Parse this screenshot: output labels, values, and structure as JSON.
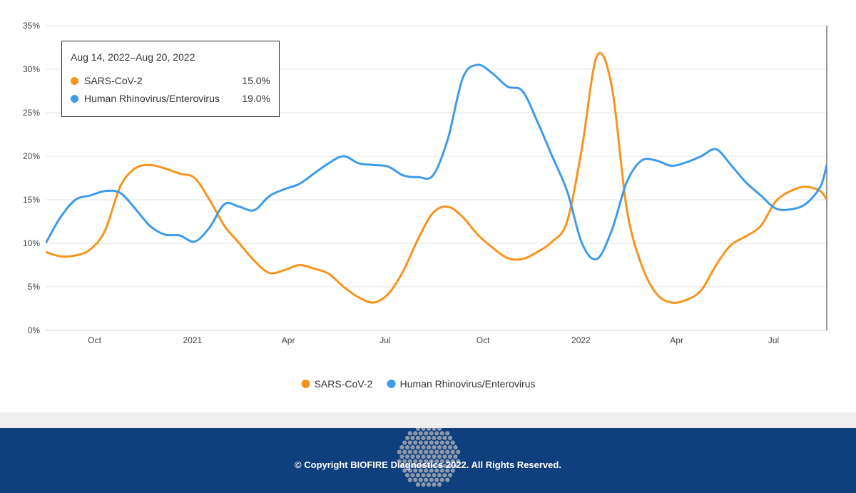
{
  "chart_data": {
    "type": "line",
    "y_ticks": [
      "0%",
      "5%",
      "10%",
      "15%",
      "20%",
      "25%",
      "30%",
      "35%"
    ],
    "ylim": [
      0,
      35
    ],
    "y_unit": "%",
    "x_range": [
      "2020-08-16",
      "2022-08-20"
    ],
    "x_ticks": [
      {
        "label": "Oct",
        "date": "2020-10-01"
      },
      {
        "label": "2021",
        "date": "2021-01-01"
      },
      {
        "label": "Apr",
        "date": "2021-04-01"
      },
      {
        "label": "Jul",
        "date": "2021-07-01"
      },
      {
        "label": "Oct",
        "date": "2021-10-01"
      },
      {
        "label": "2022",
        "date": "2022-01-01"
      },
      {
        "label": "Apr",
        "date": "2022-04-01"
      },
      {
        "label": "Jul",
        "date": "2022-07-01"
      }
    ],
    "grid": true,
    "legend": "bottom-center",
    "series": [
      {
        "name": "SARS-CoV-2",
        "color": "#f7941d",
        "points": [
          [
            "2020-08-16",
            9.0
          ],
          [
            "2020-08-30",
            8.5
          ],
          [
            "2020-09-13",
            8.6
          ],
          [
            "2020-09-27",
            9.3
          ],
          [
            "2020-10-11",
            11.5
          ],
          [
            "2020-10-25",
            16.5
          ],
          [
            "2020-11-08",
            18.6
          ],
          [
            "2020-11-22",
            19.0
          ],
          [
            "2020-12-06",
            18.6
          ],
          [
            "2020-12-20",
            18.0
          ],
          [
            "2021-01-03",
            17.5
          ],
          [
            "2021-01-17",
            15.0
          ],
          [
            "2021-01-31",
            12.0
          ],
          [
            "2021-02-14",
            10.0
          ],
          [
            "2021-02-28",
            8.0
          ],
          [
            "2021-03-14",
            6.6
          ],
          [
            "2021-03-28",
            6.9
          ],
          [
            "2021-04-11",
            7.5
          ],
          [
            "2021-04-25",
            7.1
          ],
          [
            "2021-05-09",
            6.5
          ],
          [
            "2021-05-23",
            5.0
          ],
          [
            "2021-06-06",
            3.8
          ],
          [
            "2021-06-20",
            3.2
          ],
          [
            "2021-07-04",
            4.2
          ],
          [
            "2021-07-18",
            6.8
          ],
          [
            "2021-08-01",
            10.5
          ],
          [
            "2021-08-15",
            13.5
          ],
          [
            "2021-08-29",
            14.2
          ],
          [
            "2021-09-12",
            13.0
          ],
          [
            "2021-09-26",
            11.0
          ],
          [
            "2021-10-10",
            9.5
          ],
          [
            "2021-10-24",
            8.3
          ],
          [
            "2021-11-07",
            8.2
          ],
          [
            "2021-11-21",
            9.0
          ],
          [
            "2021-12-05",
            10.2
          ],
          [
            "2021-12-19",
            12.5
          ],
          [
            "2022-01-02",
            21.0
          ],
          [
            "2022-01-16",
            31.5
          ],
          [
            "2022-01-30",
            28.0
          ],
          [
            "2022-02-13",
            14.0
          ],
          [
            "2022-02-27",
            7.5
          ],
          [
            "2022-03-13",
            4.2
          ],
          [
            "2022-03-27",
            3.2
          ],
          [
            "2022-04-10",
            3.5
          ],
          [
            "2022-04-24",
            4.6
          ],
          [
            "2022-05-08",
            7.5
          ],
          [
            "2022-05-22",
            9.8
          ],
          [
            "2022-06-05",
            10.8
          ],
          [
            "2022-06-19",
            12.0
          ],
          [
            "2022-07-03",
            14.8
          ],
          [
            "2022-07-17",
            16.0
          ],
          [
            "2022-07-31",
            16.5
          ],
          [
            "2022-08-14",
            16.0
          ],
          [
            "2022-08-20",
            15.0
          ]
        ]
      },
      {
        "name": "Human Rhinovirus/Enterovirus",
        "color": "#3d9be9",
        "points": [
          [
            "2020-08-16",
            10.0
          ],
          [
            "2020-08-30",
            13.0
          ],
          [
            "2020-09-13",
            15.0
          ],
          [
            "2020-09-27",
            15.5
          ],
          [
            "2020-10-11",
            16.0
          ],
          [
            "2020-10-25",
            15.8
          ],
          [
            "2020-11-08",
            14.0
          ],
          [
            "2020-11-22",
            12.0
          ],
          [
            "2020-12-06",
            11.0
          ],
          [
            "2020-12-20",
            10.9
          ],
          [
            "2021-01-03",
            10.2
          ],
          [
            "2021-01-17",
            11.8
          ],
          [
            "2021-01-31",
            14.5
          ],
          [
            "2021-02-14",
            14.2
          ],
          [
            "2021-02-28",
            13.8
          ],
          [
            "2021-03-14",
            15.4
          ],
          [
            "2021-03-28",
            16.2
          ],
          [
            "2021-04-11",
            16.8
          ],
          [
            "2021-04-25",
            18.0
          ],
          [
            "2021-05-09",
            19.2
          ],
          [
            "2021-05-23",
            20.0
          ],
          [
            "2021-06-06",
            19.2
          ],
          [
            "2021-06-20",
            19.0
          ],
          [
            "2021-07-04",
            18.8
          ],
          [
            "2021-07-18",
            17.8
          ],
          [
            "2021-08-01",
            17.6
          ],
          [
            "2021-08-15",
            17.8
          ],
          [
            "2021-08-29",
            22.0
          ],
          [
            "2021-09-12",
            29.0
          ],
          [
            "2021-09-26",
            30.5
          ],
          [
            "2021-10-10",
            29.5
          ],
          [
            "2021-10-24",
            28.0
          ],
          [
            "2021-11-07",
            27.5
          ],
          [
            "2021-11-21",
            24.0
          ],
          [
            "2021-12-05",
            20.0
          ],
          [
            "2021-12-19",
            16.0
          ],
          [
            "2022-01-02",
            10.0
          ],
          [
            "2022-01-16",
            8.2
          ],
          [
            "2022-01-30",
            11.5
          ],
          [
            "2022-02-13",
            17.0
          ],
          [
            "2022-02-27",
            19.5
          ],
          [
            "2022-03-13",
            19.5
          ],
          [
            "2022-03-27",
            18.9
          ],
          [
            "2022-04-10",
            19.3
          ],
          [
            "2022-04-24",
            20.0
          ],
          [
            "2022-05-08",
            20.8
          ],
          [
            "2022-05-22",
            19.0
          ],
          [
            "2022-06-05",
            17.0
          ],
          [
            "2022-06-19",
            15.5
          ],
          [
            "2022-07-03",
            14.0
          ],
          [
            "2022-07-17",
            13.9
          ],
          [
            "2022-07-31",
            14.5
          ],
          [
            "2022-08-14",
            16.5
          ],
          [
            "2022-08-20",
            19.0
          ]
        ]
      }
    ]
  },
  "tooltip": {
    "title": "Aug 14, 2022–Aug 20, 2022",
    "rows": [
      {
        "name": "SARS-CoV-2",
        "value": "15.0%",
        "color": "#f7941d"
      },
      {
        "name": "Human Rhinovirus/Enterovirus",
        "value": "19.0%",
        "color": "#3d9be9"
      }
    ]
  },
  "legend": {
    "items": [
      {
        "name": "SARS-CoV-2",
        "color": "#f7941d"
      },
      {
        "name": "Human Rhinovirus/Enterovirus",
        "color": "#3d9be9"
      }
    ]
  },
  "footer": {
    "copyright": "© Copyright BIOFIRE Diagnostics 2022. All Rights Reserved.",
    "background_color": "#0f3f7c",
    "logo_icon": "biofire-dot-logo-icon"
  }
}
